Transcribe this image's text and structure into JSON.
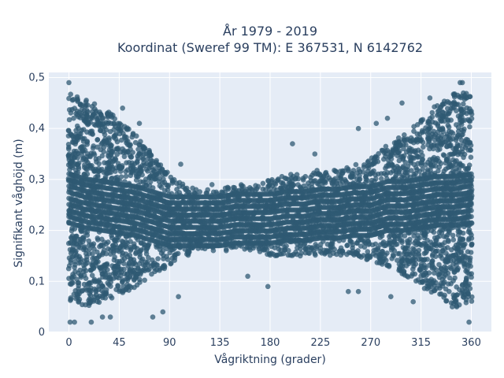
{
  "chart_data": {
    "type": "scatter",
    "title_line1": "År 1979 - 2019",
    "title_line2": "Koordinat (Sweref 99 TM): E 367531, N 6142762",
    "xlabel": "Vågriktning (grader)",
    "ylabel": "Signifikant våghöjd (m)",
    "xlim": [
      -18,
      378
    ],
    "ylim": [
      0,
      0.51
    ],
    "xticks": [
      0,
      45,
      90,
      135,
      180,
      225,
      270,
      315,
      360
    ],
    "xtick_labels": [
      "0",
      "45",
      "90",
      "135",
      "180",
      "225",
      "270",
      "315",
      "360"
    ],
    "yticks": [
      0,
      0.1,
      0.2,
      0.3,
      0.4,
      0.5
    ],
    "ytick_labels": [
      "0",
      "0,1",
      "0,2",
      "0,3",
      "0,4",
      "0,5"
    ],
    "marker_color": "#2f5a73",
    "grid": true,
    "envelope": {
      "x": [
        0,
        15,
        30,
        45,
        60,
        75,
        90,
        105,
        120,
        135,
        150,
        165,
        180,
        195,
        210,
        225,
        240,
        255,
        270,
        285,
        300,
        315,
        330,
        345,
        360
      ],
      "y_low": [
        0.06,
        0.05,
        0.06,
        0.07,
        0.09,
        0.11,
        0.13,
        0.15,
        0.16,
        0.16,
        0.16,
        0.16,
        0.15,
        0.15,
        0.15,
        0.15,
        0.15,
        0.15,
        0.14,
        0.13,
        0.11,
        0.09,
        0.07,
        0.05,
        0.06
      ],
      "y_high": [
        0.47,
        0.46,
        0.44,
        0.42,
        0.39,
        0.35,
        0.31,
        0.29,
        0.28,
        0.28,
        0.29,
        0.29,
        0.3,
        0.31,
        0.31,
        0.32,
        0.32,
        0.33,
        0.34,
        0.37,
        0.39,
        0.42,
        0.45,
        0.47,
        0.47
      ]
    },
    "outliers": [
      {
        "x": 0,
        "y": 0.49
      },
      {
        "x": 1,
        "y": 0.02
      },
      {
        "x": 5,
        "y": 0.02
      },
      {
        "x": 20,
        "y": 0.02
      },
      {
        "x": 30,
        "y": 0.03
      },
      {
        "x": 37,
        "y": 0.03
      },
      {
        "x": 48,
        "y": 0.44
      },
      {
        "x": 63,
        "y": 0.41
      },
      {
        "x": 75,
        "y": 0.03
      },
      {
        "x": 84,
        "y": 0.04
      },
      {
        "x": 98,
        "y": 0.07
      },
      {
        "x": 100,
        "y": 0.33
      },
      {
        "x": 128,
        "y": 0.29
      },
      {
        "x": 160,
        "y": 0.11
      },
      {
        "x": 178,
        "y": 0.09
      },
      {
        "x": 200,
        "y": 0.37
      },
      {
        "x": 220,
        "y": 0.35
      },
      {
        "x": 250,
        "y": 0.08
      },
      {
        "x": 259,
        "y": 0.08
      },
      {
        "x": 259,
        "y": 0.4
      },
      {
        "x": 275,
        "y": 0.41
      },
      {
        "x": 285,
        "y": 0.42
      },
      {
        "x": 288,
        "y": 0.07
      },
      {
        "x": 298,
        "y": 0.45
      },
      {
        "x": 308,
        "y": 0.06
      },
      {
        "x": 323,
        "y": 0.46
      },
      {
        "x": 343,
        "y": 0.05
      },
      {
        "x": 347,
        "y": 0.05
      },
      {
        "x": 350,
        "y": 0.49
      },
      {
        "x": 352,
        "y": 0.49
      },
      {
        "x": 358,
        "y": 0.02
      }
    ]
  }
}
